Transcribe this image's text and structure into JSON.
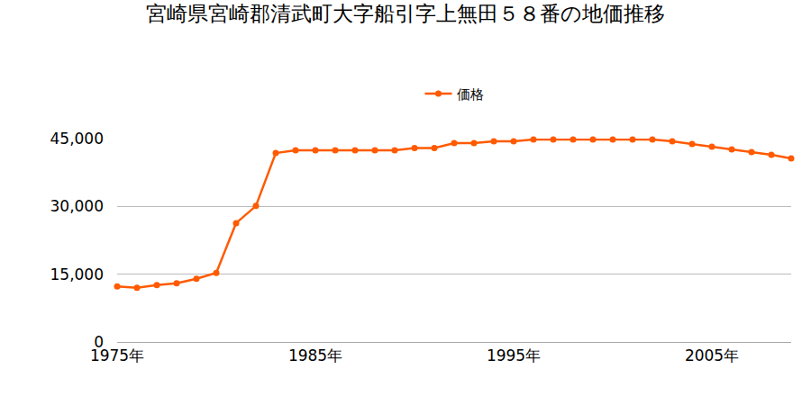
{
  "chart_data": {
    "type": "line",
    "title": "宮崎県宮崎郡清武町大字船引字上無田５８番の地価推移",
    "x": [
      1975,
      1976,
      1977,
      1978,
      1979,
      1980,
      1981,
      1982,
      1983,
      1984,
      1985,
      1986,
      1987,
      1988,
      1989,
      1990,
      1991,
      1992,
      1993,
      1994,
      1995,
      1996,
      1997,
      1998,
      1999,
      2000,
      2001,
      2002,
      2003,
      2004,
      2005,
      2006,
      2007,
      2008,
      2009
    ],
    "series": [
      {
        "name": "価格",
        "color": "#ff5a00",
        "marker": "circle",
        "values": [
          12300,
          12000,
          12600,
          13000,
          14000,
          15300,
          26300,
          30100,
          41800,
          42400,
          42400,
          42400,
          42400,
          42400,
          42400,
          42900,
          42900,
          44000,
          44000,
          44400,
          44400,
          44800,
          44800,
          44800,
          44800,
          44800,
          44800,
          44800,
          44400,
          43800,
          43200,
          42600,
          42000,
          41400,
          40600
        ]
      }
    ],
    "xlim": [
      1975,
      2009
    ],
    "xticks": [
      {
        "value": 1975,
        "label": "1975年"
      },
      {
        "value": 1985,
        "label": "1985年"
      },
      {
        "value": 1995,
        "label": "1995年"
      },
      {
        "value": 2005,
        "label": "2005年"
      }
    ],
    "ylim": [
      0,
      45000
    ],
    "yticks": [
      0,
      {
        "value": 15000,
        "label": "15,000"
      },
      {
        "value": 30000,
        "label": "30,000"
      },
      {
        "value": 45000,
        "label": "45,000"
      }
    ],
    "grid": true,
    "legend": "top"
  }
}
